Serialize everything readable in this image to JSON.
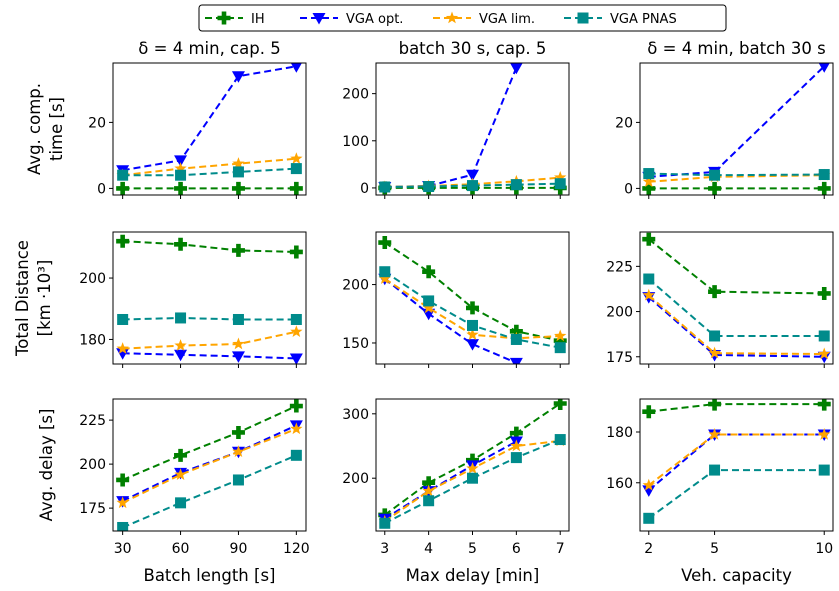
{
  "legend": [
    {
      "name": "IH",
      "color": "#008000",
      "marker": "plus"
    },
    {
      "name": "VGA opt.",
      "color": "#0000ff",
      "marker": "triangle-down"
    },
    {
      "name": "VGA lim.",
      "color": "#ffa500",
      "marker": "star"
    },
    {
      "name": "VGA PNAS",
      "color": "#008b8b",
      "marker": "square"
    }
  ],
  "column_titles": [
    "δ = 4 min, cap. 5",
    "batch 30 s, cap. 5",
    "δ = 4 min, batch 30 s"
  ],
  "row_labels": [
    [
      "Avg. comp.",
      "time [s]"
    ],
    [
      "Total Distance",
      "[km ·10³]"
    ],
    [
      "Avg. delay [s]"
    ]
  ],
  "xlabels": [
    "Batch length [s]",
    "Max delay [min]",
    "Veh. capacity"
  ],
  "chart_data": [
    {
      "type": "line",
      "row": 0,
      "col": 0,
      "x": [
        30,
        60,
        90,
        120
      ],
      "xticks": [
        30,
        60,
        90,
        120
      ],
      "xlim": [
        25,
        125
      ],
      "ylim": [
        -2,
        38
      ],
      "yticks": [
        0,
        20
      ],
      "series": [
        {
          "name": "IH",
          "values": [
            0,
            0,
            0,
            0
          ]
        },
        {
          "name": "VGA opt.",
          "values": [
            5.5,
            8.5,
            34,
            37
          ]
        },
        {
          "name": "VGA lim.",
          "values": [
            4,
            6,
            7.5,
            9
          ]
        },
        {
          "name": "VGA PNAS",
          "values": [
            4,
            4,
            5,
            6
          ]
        }
      ]
    },
    {
      "type": "line",
      "row": 0,
      "col": 1,
      "x": [
        3,
        4,
        5,
        6,
        7
      ],
      "xticks": [
        3,
        4,
        5,
        6,
        7
      ],
      "xlim": [
        2.8,
        7.2
      ],
      "ylim": [
        -15,
        265
      ],
      "yticks": [
        0,
        100,
        200
      ],
      "series": [
        {
          "name": "IH",
          "values": [
            0,
            0,
            0,
            0,
            0
          ]
        },
        {
          "name": "VGA opt.",
          "values": [
            2,
            4,
            28,
            255,
            null
          ]
        },
        {
          "name": "VGA lim.",
          "values": [
            2,
            4,
            8,
            14,
            22
          ]
        },
        {
          "name": "VGA PNAS",
          "values": [
            2,
            3,
            5,
            7,
            9
          ]
        }
      ]
    },
    {
      "type": "line",
      "row": 0,
      "col": 2,
      "x": [
        2,
        5,
        10
      ],
      "xticks": [
        2,
        5,
        10
      ],
      "xlim": [
        1.6,
        10.4
      ],
      "ylim": [
        -2,
        38
      ],
      "yticks": [
        0,
        20
      ],
      "series": [
        {
          "name": "IH",
          "values": [
            0,
            0,
            0
          ]
        },
        {
          "name": "VGA opt.",
          "values": [
            3.5,
            5,
            37
          ]
        },
        {
          "name": "VGA lim.",
          "values": [
            2,
            3.5,
            4
          ]
        },
        {
          "name": "VGA PNAS",
          "values": [
            4.5,
            4,
            4.2
          ]
        }
      ]
    },
    {
      "type": "line",
      "row": 1,
      "col": 0,
      "x": [
        30,
        60,
        90,
        120
      ],
      "xticks": [
        30,
        60,
        90,
        120
      ],
      "xlim": [
        25,
        125
      ],
      "ylim": [
        172,
        215
      ],
      "yticks": [
        180,
        200
      ],
      "series": [
        {
          "name": "IH",
          "values": [
            212,
            211,
            209,
            208.5
          ]
        },
        {
          "name": "VGA opt.",
          "values": [
            175.5,
            175,
            174.5,
            173.8
          ]
        },
        {
          "name": "VGA lim.",
          "values": [
            177,
            178,
            178.5,
            182.5
          ]
        },
        {
          "name": "VGA PNAS",
          "values": [
            186.5,
            187,
            186.5,
            186.5
          ]
        }
      ]
    },
    {
      "type": "line",
      "row": 1,
      "col": 1,
      "x": [
        3,
        4,
        5,
        6,
        7
      ],
      "xticks": [
        3,
        4,
        5,
        6,
        7
      ],
      "xlim": [
        2.8,
        7.2
      ],
      "ylim": [
        132,
        245
      ],
      "yticks": [
        150,
        200
      ],
      "series": [
        {
          "name": "IH",
          "values": [
            236,
            211,
            180,
            160,
            152
          ]
        },
        {
          "name": "VGA opt.",
          "values": [
            205,
            175,
            149,
            133,
            null
          ]
        },
        {
          "name": "VGA lim.",
          "values": [
            205,
            180,
            157,
            154,
            156
          ]
        },
        {
          "name": "VGA PNAS",
          "values": [
            211,
            186,
            165,
            153,
            146
          ]
        }
      ]
    },
    {
      "type": "line",
      "row": 1,
      "col": 2,
      "x": [
        2,
        5,
        10
      ],
      "xticks": [
        2,
        5,
        10
      ],
      "xlim": [
        1.6,
        10.4
      ],
      "ylim": [
        171,
        244
      ],
      "yticks": [
        175,
        200,
        225
      ],
      "series": [
        {
          "name": "IH",
          "values": [
            240,
            211,
            210
          ]
        },
        {
          "name": "VGA opt.",
          "values": [
            208,
            176,
            175
          ]
        },
        {
          "name": "VGA lim.",
          "values": [
            209,
            177,
            176.5
          ]
        },
        {
          "name": "VGA PNAS",
          "values": [
            218,
            186.5,
            186.5
          ]
        }
      ]
    },
    {
      "type": "line",
      "row": 2,
      "col": 0,
      "x": [
        30,
        60,
        90,
        120
      ],
      "xticks": [
        30,
        60,
        90,
        120
      ],
      "xlim": [
        25,
        125
      ],
      "ylim": [
        162,
        237
      ],
      "yticks": [
        175,
        200,
        225
      ],
      "series": [
        {
          "name": "IH",
          "values": [
            191,
            205,
            218,
            233
          ]
        },
        {
          "name": "VGA opt.",
          "values": [
            179,
            195,
            207,
            222
          ]
        },
        {
          "name": "VGA lim.",
          "values": [
            178,
            194,
            207,
            220
          ]
        },
        {
          "name": "VGA PNAS",
          "values": [
            164,
            178,
            191,
            205
          ]
        }
      ]
    },
    {
      "type": "line",
      "row": 2,
      "col": 1,
      "x": [
        3,
        4,
        5,
        6,
        7
      ],
      "xticks": [
        3,
        4,
        5,
        6,
        7
      ],
      "xlim": [
        2.8,
        7.2
      ],
      "ylim": [
        118,
        323
      ],
      "yticks": [
        200,
        300
      ],
      "series": [
        {
          "name": "IH",
          "values": [
            143,
            193,
            228,
            270,
            316
          ]
        },
        {
          "name": "VGA opt.",
          "values": [
            137,
            180,
            220,
            257,
            null
          ]
        },
        {
          "name": "VGA lim.",
          "values": [
            133,
            180,
            215,
            250,
            258
          ]
        },
        {
          "name": "VGA PNAS",
          "values": [
            130,
            165,
            200,
            232,
            260
          ]
        }
      ]
    },
    {
      "type": "line",
      "row": 2,
      "col": 2,
      "x": [
        2,
        5,
        10
      ],
      "xticks": [
        2,
        5,
        10
      ],
      "xlim": [
        1.6,
        10.4
      ],
      "ylim": [
        141,
        193
      ],
      "yticks": [
        160,
        180
      ],
      "series": [
        {
          "name": "IH",
          "values": [
            188,
            191,
            191
          ]
        },
        {
          "name": "VGA opt.",
          "values": [
            157,
            179,
            179
          ]
        },
        {
          "name": "VGA lim.",
          "values": [
            159,
            179,
            179
          ]
        },
        {
          "name": "VGA PNAS",
          "values": [
            146,
            165,
            165
          ]
        }
      ]
    }
  ]
}
